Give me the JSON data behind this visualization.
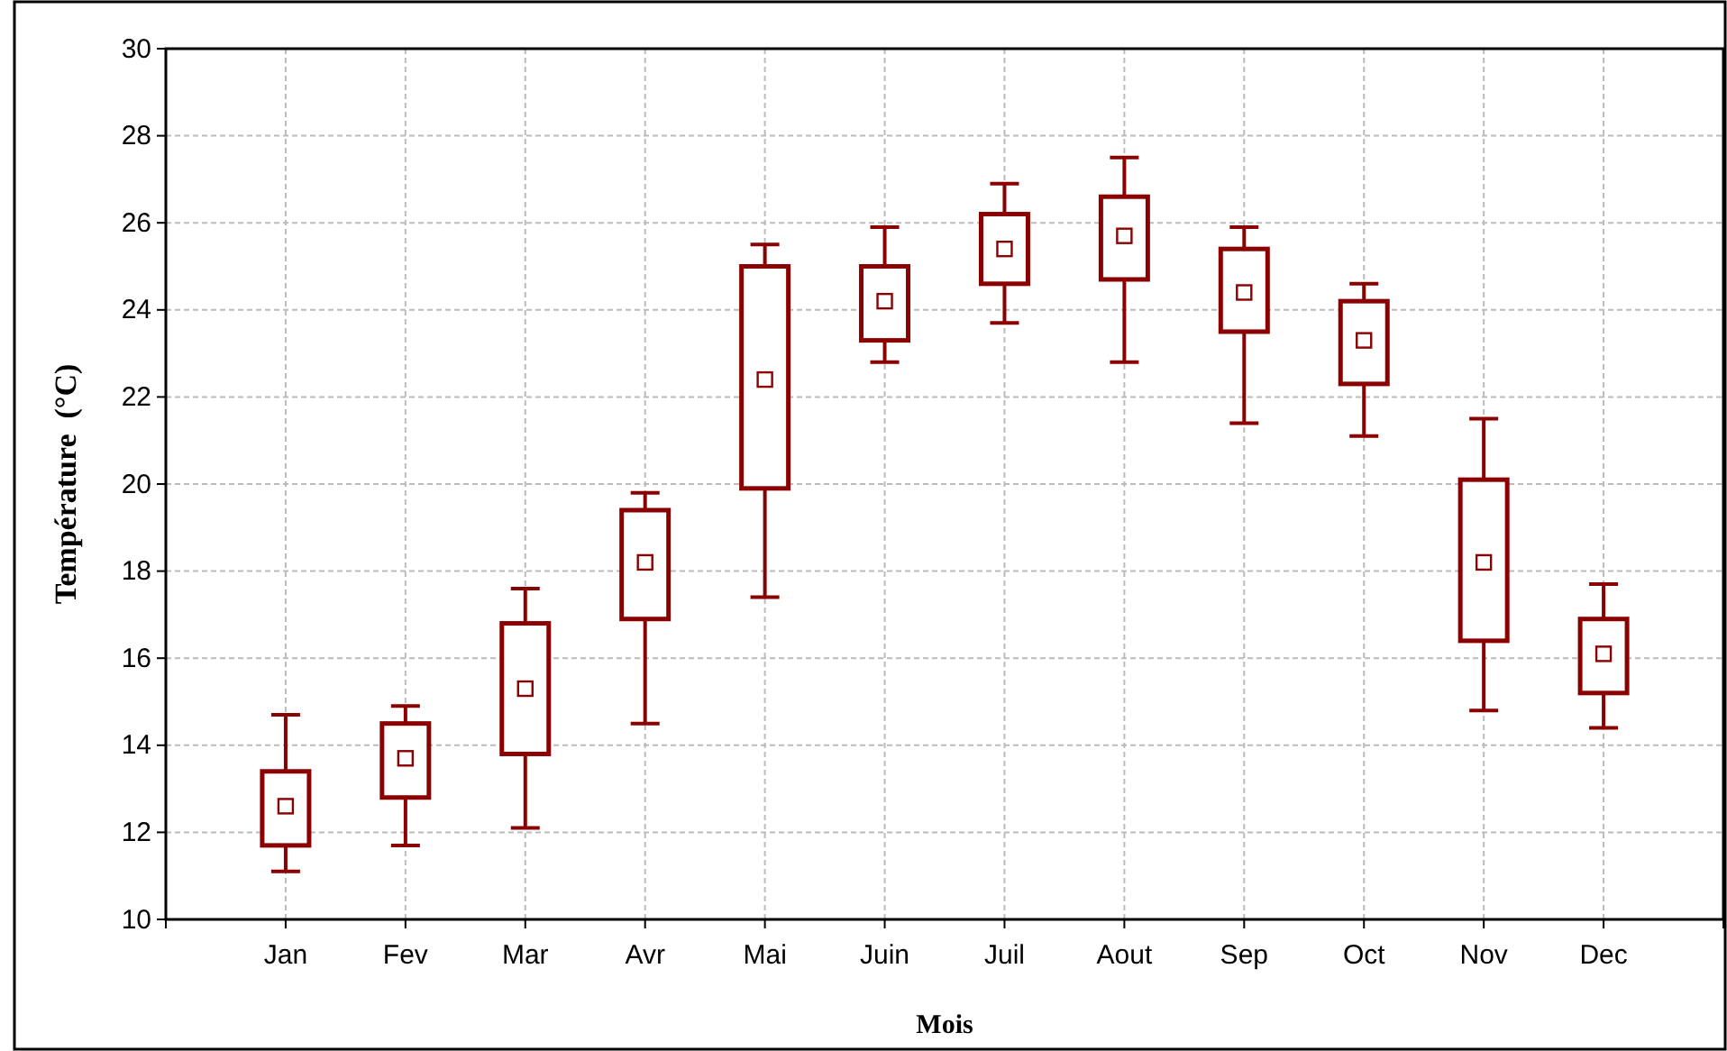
{
  "chart_data": {
    "type": "box",
    "xlabel": "Mois",
    "ylabel": "Température  (°C)",
    "categories": [
      "Jan",
      "Fev",
      "Mar",
      "Avr",
      "Mai",
      "Juin",
      "Juil",
      "Aout",
      "Sep",
      "Oct",
      "Nov",
      "Dec"
    ],
    "color": "#8b0000",
    "marker": "square",
    "grid": true,
    "ylim": [
      10,
      30
    ],
    "yticks": [
      10,
      12,
      14,
      16,
      18,
      20,
      22,
      24,
      26,
      28,
      30
    ],
    "boxes": [
      {
        "low": 11.1,
        "q1": 11.7,
        "median": 12.6,
        "q3": 13.4,
        "high": 14.7
      },
      {
        "low": 11.7,
        "q1": 12.8,
        "median": 13.7,
        "q3": 14.5,
        "high": 14.9
      },
      {
        "low": 12.1,
        "q1": 13.8,
        "median": 15.3,
        "q3": 16.8,
        "high": 17.6
      },
      {
        "low": 14.5,
        "q1": 16.9,
        "median": 18.2,
        "q3": 19.4,
        "high": 19.8
      },
      {
        "low": 17.4,
        "q1": 19.9,
        "median": 22.4,
        "q3": 25.0,
        "high": 25.5
      },
      {
        "low": 22.8,
        "q1": 23.3,
        "median": 24.2,
        "q3": 25.0,
        "high": 25.9
      },
      {
        "low": 23.7,
        "q1": 24.6,
        "median": 25.4,
        "q3": 26.2,
        "high": 26.9
      },
      {
        "low": 22.8,
        "q1": 24.7,
        "median": 25.7,
        "q3": 26.6,
        "high": 27.5
      },
      {
        "low": 21.4,
        "q1": 23.5,
        "median": 24.4,
        "q3": 25.4,
        "high": 25.9
      },
      {
        "low": 21.1,
        "q1": 22.3,
        "median": 23.3,
        "q3": 24.2,
        "high": 24.6
      },
      {
        "low": 14.8,
        "q1": 16.4,
        "median": 18.2,
        "q3": 20.1,
        "high": 21.5
      },
      {
        "low": 14.4,
        "q1": 15.2,
        "median": 16.1,
        "q3": 16.9,
        "high": 17.7
      }
    ]
  }
}
